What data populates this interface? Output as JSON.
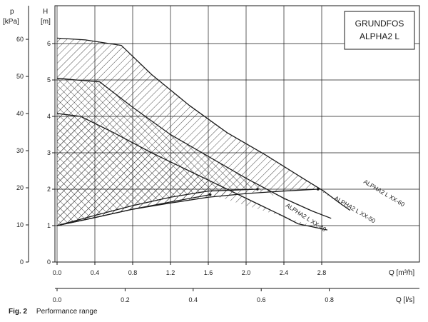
{
  "chart_data": {
    "type": "line",
    "title": "GRUNDFOS ALPHA2 L",
    "title_lines": [
      "GRUNDFOS",
      "ALPHA2 L"
    ],
    "axes": {
      "y_left_outer": {
        "symbol": "p",
        "unit": "[kPa]",
        "ticks": [
          0,
          10,
          20,
          30,
          40,
          50,
          60
        ]
      },
      "y_left_inner": {
        "symbol": "H",
        "unit": "[m]",
        "ticks": [
          0,
          1,
          2,
          3,
          4,
          5,
          6
        ]
      },
      "x_primary": {
        "label": "Q [m³/h]",
        "ticks": [
          0.0,
          0.4,
          0.8,
          1.2,
          1.6,
          2.0,
          2.4,
          2.8
        ],
        "range": [
          0,
          3.0
        ]
      },
      "x_secondary": {
        "label": "Q [l/s]",
        "ticks": [
          0.0,
          0.2,
          0.4,
          0.6,
          0.8
        ],
        "tick_labels": [
          "0.0",
          "0.2",
          "0.4",
          "0.6",
          "0.8"
        ]
      },
      "ylim_m": [
        0,
        6.8
      ],
      "grid": true
    },
    "series": [
      {
        "name": "ALPHA2 L XX-40",
        "max_curve": [
          [
            0.0,
            4.08
          ],
          [
            0.25,
            4.0
          ],
          [
            0.6,
            3.55
          ],
          [
            1.0,
            3.0
          ],
          [
            1.4,
            2.5
          ],
          [
            1.8,
            2.0
          ],
          [
            2.2,
            1.5
          ],
          [
            2.4,
            1.25
          ],
          [
            2.55,
            1.05
          ],
          [
            2.86,
            0.88
          ]
        ],
        "min_curve": [
          [
            0.0,
            1.0
          ],
          [
            0.4,
            1.22
          ],
          [
            0.8,
            1.45
          ],
          [
            1.2,
            1.65
          ],
          [
            1.62,
            1.85
          ]
        ]
      },
      {
        "name": "ALPHA2 L XX-50",
        "max_curve": [
          [
            0.0,
            5.05
          ],
          [
            0.2,
            5.0
          ],
          [
            0.45,
            4.95
          ],
          [
            0.8,
            4.25
          ],
          [
            1.2,
            3.5
          ],
          [
            1.6,
            2.9
          ],
          [
            2.0,
            2.3
          ],
          [
            2.4,
            1.75
          ],
          [
            2.7,
            1.4
          ],
          [
            2.9,
            1.2
          ]
        ],
        "min_curve": [
          [
            0.0,
            1.0
          ],
          [
            0.4,
            1.28
          ],
          [
            0.8,
            1.55
          ],
          [
            1.2,
            1.78
          ],
          [
            1.6,
            1.95
          ],
          [
            2.12,
            2.0
          ]
        ]
      },
      {
        "name": "ALPHA2 L XX-60",
        "max_curve": [
          [
            0.0,
            6.15
          ],
          [
            0.3,
            6.1
          ],
          [
            0.68,
            5.95
          ],
          [
            1.0,
            5.15
          ],
          [
            1.4,
            4.3
          ],
          [
            1.8,
            3.55
          ],
          [
            2.2,
            2.95
          ],
          [
            2.6,
            2.3
          ],
          [
            2.82,
            1.95
          ],
          [
            3.0,
            1.6
          ],
          [
            3.1,
            1.42
          ]
        ],
        "min_curve": [
          [
            0.0,
            1.0
          ],
          [
            0.4,
            1.22
          ],
          [
            0.8,
            1.45
          ],
          [
            1.2,
            1.62
          ],
          [
            1.6,
            1.78
          ],
          [
            2.0,
            1.88
          ],
          [
            2.4,
            1.95
          ],
          [
            2.76,
            2.0
          ]
        ]
      }
    ]
  },
  "caption": {
    "figure": "Fig. 2",
    "text": "Performance range"
  }
}
